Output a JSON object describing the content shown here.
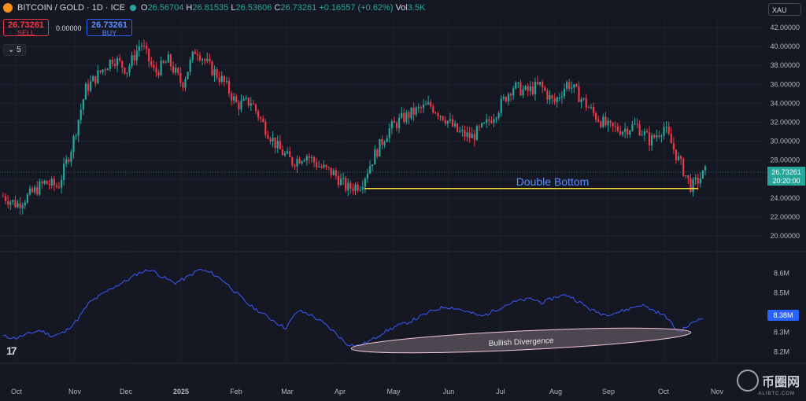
{
  "header": {
    "symbol": "BITCOIN / GOLD · 1D · ICE",
    "open_label": "O",
    "open": "26.56704",
    "high_label": "H",
    "high": "26.81535",
    "low_label": "L",
    "low": "26.53606",
    "close_label": "C",
    "close": "26.73261",
    "change": "+0.16557 (+0.62%)",
    "vol_label": "Vol",
    "vol": "3.5K"
  },
  "trade": {
    "sell_price": "26.73261",
    "sell_label": "SELL",
    "spread": "0.00000",
    "buy_price": "26.73261",
    "buy_label": "BUY",
    "collapse_count": "5"
  },
  "currency": "XAU",
  "watermark": {
    "text": "币圈网",
    "sub": "ALIBTC.COM"
  },
  "colors": {
    "up": "#26a69a",
    "down": "#f23645",
    "volume_line": "#3d5afe",
    "support": "#f5e13a",
    "annotation": "#5b8cff"
  },
  "chart_data": [
    {
      "type": "candlestick",
      "price_axis": {
        "min": 20,
        "max": 42,
        "ticks": [
          "42.00000",
          "40.00000",
          "38.00000",
          "36.00000",
          "34.00000",
          "32.00000",
          "30.00000",
          "28.00000",
          "26.00000",
          "24.00000",
          "22.00000",
          "20.00000"
        ]
      },
      "x_ticks": [
        "Oct",
        "Nov",
        "Dec",
        "2025",
        "Feb",
        "Mar",
        "Apr",
        "May",
        "Jun",
        "Jul",
        "Aug",
        "Sep",
        "Oct",
        "Nov"
      ],
      "last_price_label": "26.73261",
      "countdown": "20:20:00",
      "annotation": "Double Bottom",
      "support_level": 25.0,
      "close_path": [
        {
          "m": "Oct",
          "v": 24.2
        },
        {
          "m": "Oct",
          "v": 23.3
        },
        {
          "m": "Oct",
          "v": 24.4
        },
        {
          "m": "Oct",
          "v": 25.6
        },
        {
          "m": "Nov",
          "v": 25.2
        },
        {
          "m": "Nov",
          "v": 29.5
        },
        {
          "m": "Nov",
          "v": 35.5
        },
        {
          "m": "Nov",
          "v": 37.2
        },
        {
          "m": "Dec",
          "v": 38.8
        },
        {
          "m": "Dec",
          "v": 37.5
        },
        {
          "m": "Dec",
          "v": 40.4
        },
        {
          "m": "Dec",
          "v": 37.2
        },
        {
          "m": "2025",
          "v": 38.5
        },
        {
          "m": "2025",
          "v": 36.0
        },
        {
          "m": "2025",
          "v": 39.8
        },
        {
          "m": "2025",
          "v": 37.8
        },
        {
          "m": "Feb",
          "v": 36.3
        },
        {
          "m": "Feb",
          "v": 33.8
        },
        {
          "m": "Feb",
          "v": 34.2
        },
        {
          "m": "Feb",
          "v": 31.5
        },
        {
          "m": "Mar",
          "v": 29.2
        },
        {
          "m": "Mar",
          "v": 27.8
        },
        {
          "m": "Mar",
          "v": 28.6
        },
        {
          "m": "Mar",
          "v": 27.3
        },
        {
          "m": "Apr",
          "v": 26.6
        },
        {
          "m": "Apr",
          "v": 25.0
        },
        {
          "m": "Apr",
          "v": 25.5
        },
        {
          "m": "Apr",
          "v": 28.6
        },
        {
          "m": "May",
          "v": 31.2
        },
        {
          "m": "May",
          "v": 32.4
        },
        {
          "m": "May",
          "v": 33.2
        },
        {
          "m": "May",
          "v": 33.8
        },
        {
          "m": "Jun",
          "v": 32.6
        },
        {
          "m": "Jun",
          "v": 31.0
        },
        {
          "m": "Jun",
          "v": 30.4
        },
        {
          "m": "Jun",
          "v": 31.6
        },
        {
          "m": "Jul",
          "v": 33.5
        },
        {
          "m": "Jul",
          "v": 35.8
        },
        {
          "m": "Jul",
          "v": 35.2
        },
        {
          "m": "Jul",
          "v": 35.9
        },
        {
          "m": "Aug",
          "v": 34.0
        },
        {
          "m": "Aug",
          "v": 36.2
        },
        {
          "m": "Aug",
          "v": 34.5
        },
        {
          "m": "Aug",
          "v": 32.7
        },
        {
          "m": "Sep",
          "v": 31.4
        },
        {
          "m": "Sep",
          "v": 31.2
        },
        {
          "m": "Sep",
          "v": 31.7
        },
        {
          "m": "Sep",
          "v": 30.0
        },
        {
          "m": "Oct",
          "v": 31.5
        },
        {
          "m": "Oct",
          "v": 28.2
        },
        {
          "m": "Oct",
          "v": 25.1
        },
        {
          "m": "Oct",
          "v": 26.73
        }
      ]
    },
    {
      "type": "line",
      "series": [
        {
          "values": [
            8.28,
            8.27,
            8.29,
            8.31,
            8.28,
            8.3,
            8.36,
            8.45,
            8.49,
            8.53,
            8.56,
            8.6,
            8.62,
            8.58,
            8.55,
            8.58,
            8.62,
            8.6,
            8.56,
            8.5,
            8.44,
            8.4,
            8.36,
            8.32,
            8.41,
            8.39,
            8.35,
            8.3,
            8.24,
            8.23,
            8.26,
            8.3,
            8.33,
            8.35,
            8.38,
            8.41,
            8.43,
            8.42,
            8.4,
            8.38,
            8.41,
            8.44,
            8.46,
            8.47,
            8.45,
            8.48,
            8.49,
            8.45,
            8.41,
            8.39,
            8.4,
            8.42,
            8.44,
            8.41,
            8.38,
            8.3,
            8.34,
            8.38
          ]
        }
      ],
      "y_axis": {
        "min": 8.17,
        "max": 8.65,
        "ticks": [
          "8.6M",
          "8.5M",
          "8.4M",
          "8.3M",
          "8.2M"
        ]
      },
      "last_value_label": "8.38M",
      "annotation": "Bullish Divergence"
    }
  ]
}
